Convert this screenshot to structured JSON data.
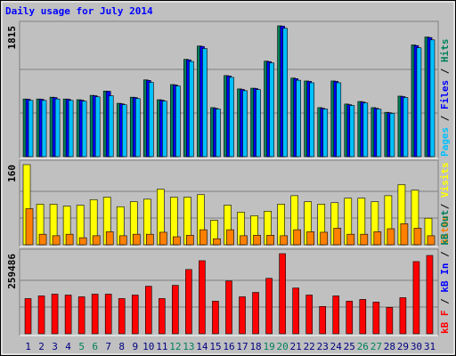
{
  "chart_data": [
    {
      "type": "bar",
      "title": "Daily usage for July 2014",
      "ylim": [
        0,
        1815
      ],
      "yticks": [
        1815
      ],
      "grid": true,
      "separator": "/",
      "series": [
        {
          "name": "Hits",
          "color": "#00805c",
          "values": [
            800,
            800,
            825,
            800,
            790,
            850,
            910,
            740,
            825,
            1065,
            790,
            1000,
            1350,
            1535,
            680,
            1125,
            940,
            950,
            1325,
            1815,
            1090,
            1050,
            680,
            1050,
            730,
            765,
            680,
            615,
            840,
            1550,
            1660
          ]
        },
        {
          "name": "Files",
          "color": "#0000ff",
          "values": [
            796,
            796,
            820,
            796,
            783,
            845,
            907,
            733,
            820,
            1057,
            783,
            994,
            1343,
            1529,
            671,
            1119,
            932,
            945,
            1318,
            1810,
            1082,
            1044,
            671,
            1044,
            721,
            758,
            671,
            609,
            833,
            1541,
            1653
          ]
        },
        {
          "name": "Pages",
          "color": "#00c0ff",
          "values": [
            780,
            780,
            800,
            780,
            770,
            830,
            845,
            720,
            805,
            1030,
            770,
            980,
            1320,
            1500,
            660,
            1100,
            915,
            930,
            1300,
            1780,
            1060,
            1025,
            660,
            1025,
            710,
            745,
            660,
            600,
            820,
            1510,
            1620
          ]
        }
      ]
    },
    {
      "type": "bar",
      "ylim": [
        0,
        160
      ],
      "yticks": [
        160
      ],
      "grid": true,
      "separator": "/",
      "series": [
        {
          "name": "Visits",
          "color": "#ffff00",
          "values": [
            160,
            81,
            81,
            77,
            79,
            90,
            95,
            76,
            86,
            91,
            111,
            95,
            95,
            100,
            49,
            79,
            65,
            58,
            67,
            81,
            98,
            86,
            81,
            84,
            93,
            93,
            86,
            98,
            120,
            109,
            53
          ]
        },
        {
          "name": "Sites",
          "color": "#ff8000",
          "values": [
            72,
            21,
            18,
            21,
            14,
            18,
            26,
            18,
            21,
            21,
            25,
            16,
            19,
            30,
            12,
            30,
            18,
            19,
            19,
            18,
            30,
            26,
            25,
            33,
            21,
            21,
            26,
            32,
            42,
            33,
            18
          ]
        }
      ]
    },
    {
      "type": "bar",
      "ylim": [
        0,
        259486
      ],
      "yticks": [
        259486
      ],
      "grid": true,
      "separator": "/",
      "categories": [
        "1",
        "2",
        "3",
        "4",
        "5",
        "6",
        "7",
        "8",
        "9",
        "10",
        "11",
        "12",
        "13",
        "14",
        "15",
        "16",
        "17",
        "18",
        "19",
        "20",
        "21",
        "22",
        "23",
        "24",
        "25",
        "26",
        "27",
        "28",
        "29",
        "30",
        "31"
      ],
      "category_colors": [
        "#000080",
        "#000080",
        "#000080",
        "#000080",
        "#00805c",
        "#00805c",
        "#000080",
        "#000080",
        "#000080",
        "#000080",
        "#000080",
        "#00805c",
        "#00805c",
        "#000080",
        "#000080",
        "#000080",
        "#000080",
        "#000080",
        "#00805c",
        "#00805c",
        "#000080",
        "#000080",
        "#000080",
        "#000080",
        "#000080",
        "#00805c",
        "#00805c",
        "#000080",
        "#000080",
        "#000080",
        "#000080"
      ],
      "series": [
        {
          "name": "kB F",
          "color": "#ff0000",
          "values": [
            114000,
            122600,
            128300,
            125400,
            119700,
            128300,
            128300,
            114000,
            125400,
            154000,
            114000,
            156800,
            208100,
            236600,
            105500,
            171100,
            119700,
            134000,
            179600,
            259486,
            148300,
            125400,
            88400,
            122600,
            105500,
            111200,
            102600,
            85500,
            116900,
            233800,
            253700
          ]
        }
      ],
      "legend_only": [
        {
          "name": "kB In",
          "color": "#0000ff"
        },
        {
          "name": "kB Out",
          "color": "#00805c"
        }
      ]
    }
  ]
}
